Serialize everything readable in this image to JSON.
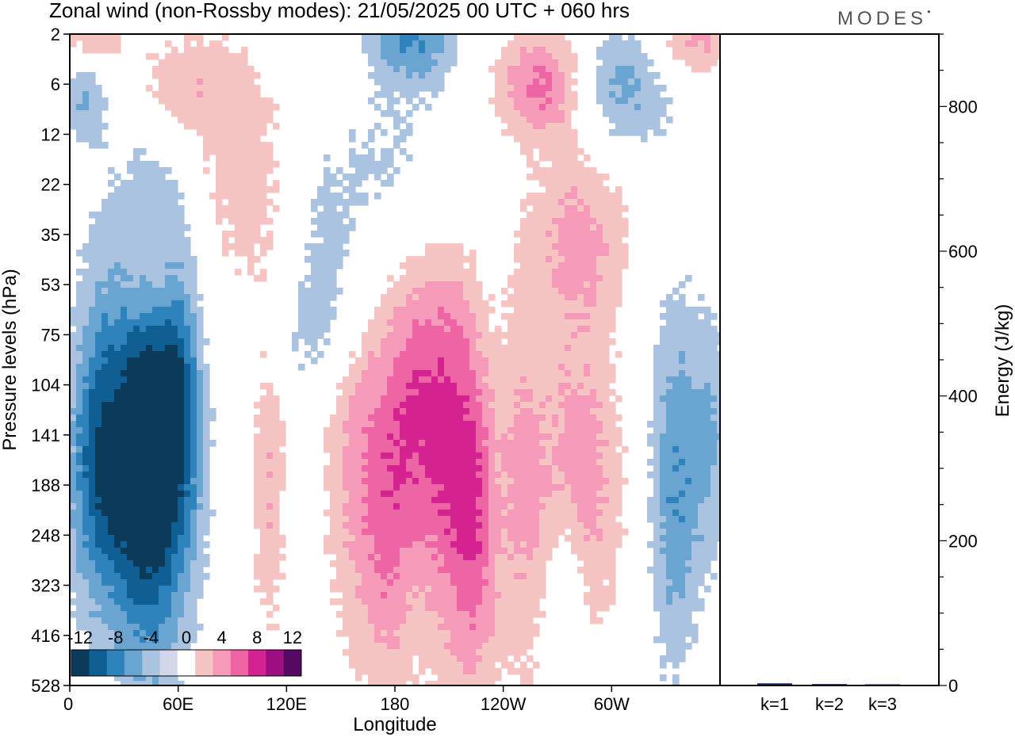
{
  "header": {
    "title": "Zonal wind (non-Rossby modes):  21/05/2025  00 UTC  + 060 hrs",
    "brand": "MODES"
  },
  "colors": {
    "blue_scale": [
      "#0b3a5a",
      "#0f5f94",
      "#2f83bd",
      "#6aa4d0",
      "#a9c3e0",
      "#d2d7ea"
    ],
    "red_scale": [
      "#f7c4c4",
      "#f59ab8",
      "#ee65a6",
      "#d42291",
      "#9e1081",
      "#560a64"
    ],
    "energy_bar": "#1a237e"
  },
  "chart_data": [
    {
      "type": "heatmap",
      "title": "Zonal wind (non-Rossby modes):  21/05/2025  00 UTC  + 060 hrs",
      "xlabel": "Longitude",
      "ylabel": "Pressure levels (hPa)",
      "x_ticks": [
        "0",
        "60E",
        "120E",
        "180",
        "120W",
        "60W"
      ],
      "x_tick_degrees": [
        0,
        60,
        120,
        180,
        240,
        300
      ],
      "xlim": [
        0,
        360
      ],
      "y_ticks": [
        "2",
        "6",
        "12",
        "22",
        "35",
        "53",
        "75",
        "104",
        "141",
        "188",
        "248",
        "323",
        "416",
        "528"
      ],
      "y_scale": "pressure levels (reversed, top = 2 hPa)",
      "colorbar": {
        "labels": [
          "-12",
          "-8",
          "-4",
          "0",
          "4",
          "8",
          "12"
        ],
        "levels": [
          -12,
          -10,
          -8,
          -6,
          -4,
          -2,
          2,
          4,
          6,
          8,
          10,
          12
        ],
        "placement": "bottom-left inside plot"
      },
      "features": [
        {
          "lon": 44,
          "level": "141",
          "value": -12,
          "spread_lon": 16,
          "spread_lev": 3.2
        },
        {
          "lon": 14,
          "level": "141",
          "value": -5,
          "spread_lon": 10,
          "spread_lev": 2.5
        },
        {
          "lon": 62,
          "level": "104",
          "value": -4,
          "spread_lon": 8,
          "spread_lev": 2.0
        },
        {
          "lon": 30,
          "level": "188",
          "value": -4,
          "spread_lon": 24,
          "spread_lev": 1.6
        },
        {
          "lon": 8,
          "level": "6",
          "value": -5,
          "spread_lon": 10,
          "spread_lev": 0.8
        },
        {
          "lon": 180,
          "level": "22",
          "value": -3,
          "spread_lon": 35,
          "spread_lev": 1.6
        },
        {
          "lon": 145,
          "level": "35",
          "value": -2.5,
          "spread_lon": 16,
          "spread_lev": 1.4
        },
        {
          "lon": 190,
          "level": "2",
          "value": -6,
          "spread_lon": 18,
          "spread_lev": 0.7
        },
        {
          "lon": 300,
          "level": "6",
          "value": -6,
          "spread_lon": 24,
          "spread_lev": 0.9
        },
        {
          "lon": 335,
          "level": "188",
          "value": -6,
          "spread_lon": 10,
          "spread_lev": 2.6
        },
        {
          "lon": 355,
          "level": "141",
          "value": -4,
          "spread_lon": 8,
          "spread_lev": 1.8
        },
        {
          "lon": 275,
          "level": "323",
          "value": -4,
          "spread_lon": 8,
          "spread_lev": 1.6
        },
        {
          "lon": 140,
          "level": "75",
          "value": -3,
          "spread_lon": 22,
          "spread_lev": 1.0
        },
        {
          "lon": 10,
          "level": "2",
          "value": 6,
          "spread_lon": 12,
          "spread_lev": 0.6
        },
        {
          "lon": 265,
          "level": "6",
          "value": 8,
          "spread_lon": 20,
          "spread_lev": 0.8
        },
        {
          "lon": 345,
          "level": "2",
          "value": 5,
          "spread_lon": 18,
          "spread_lev": 0.7
        },
        {
          "lon": 60,
          "level": "6",
          "value": 3.5,
          "spread_lon": 22,
          "spread_lev": 0.8
        },
        {
          "lon": 100,
          "level": "22",
          "value": 3,
          "spread_lon": 25,
          "spread_lev": 2.0
        },
        {
          "lon": 45,
          "level": "53",
          "value": 4,
          "spread_lon": 12,
          "spread_lev": 0.9
        },
        {
          "lon": 210,
          "level": "141",
          "value": 7,
          "spread_lon": 14,
          "spread_lev": 3.0
        },
        {
          "lon": 160,
          "level": "141",
          "value": 5,
          "spread_lon": 14,
          "spread_lev": 3.2
        },
        {
          "lon": 190,
          "level": "104",
          "value": 4.5,
          "spread_lon": 12,
          "spread_lev": 2.2
        },
        {
          "lon": 280,
          "level": "188",
          "value": 6,
          "spread_lon": 18,
          "spread_lev": 2.2
        },
        {
          "lon": 225,
          "level": "248",
          "value": 5,
          "spread_lon": 10,
          "spread_lev": 2.4
        },
        {
          "lon": 178,
          "level": "248",
          "value": 4,
          "spread_lon": 10,
          "spread_lev": 2.4
        },
        {
          "lon": 110,
          "level": "188",
          "value": 4,
          "spread_lon": 7,
          "spread_lev": 2.2
        },
        {
          "lon": 282,
          "level": "35",
          "value": 4.5,
          "spread_lon": 20,
          "spread_lev": 1.3
        },
        {
          "lon": 250,
          "level": "188",
          "value": 3,
          "spread_lon": 8,
          "spread_lev": 3.4
        }
      ]
    },
    {
      "type": "bar",
      "categories": [
        "k=1",
        "k=2",
        "k=3"
      ],
      "values": [
        3,
        2,
        1
      ],
      "ylabel": "Energy (J/kg)",
      "ylim": [
        0,
        900
      ],
      "y_ticks": [
        "0",
        "200",
        "400",
        "600",
        "800"
      ],
      "y_tick_values": [
        0,
        200,
        400,
        600,
        800
      ]
    }
  ]
}
